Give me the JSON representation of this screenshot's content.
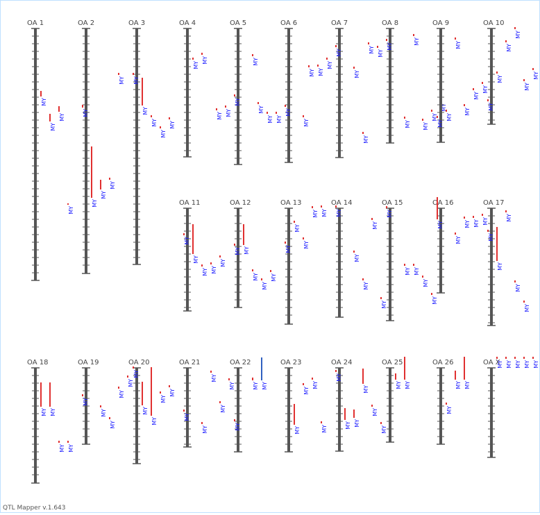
{
  "app": {
    "footer": "QTL Mapper v.1.643"
  },
  "colors": {
    "axis": "#555555",
    "qtl": "#e03030",
    "qtl_alt": "#3060c0",
    "label": "#1a1aff",
    "title": "#444444"
  },
  "trait_label": "MY",
  "chromosomes": [
    {
      "name": "OA 1",
      "qtls": [
        {
          "lane": 0,
          "top": 130,
          "bottom": 138
        },
        {
          "lane": 1,
          "top": 163,
          "bottom": 174
        },
        {
          "lane": 2,
          "top": 152,
          "bottom": 160
        },
        {
          "lane": 3,
          "top": 292,
          "bottom": 294
        }
      ]
    },
    {
      "name": "OA 2",
      "qtls": [
        {
          "lane": -1,
          "top": 150,
          "bottom": 154
        },
        {
          "lane": 0,
          "top": 210,
          "bottom": 284
        },
        {
          "lane": 1,
          "top": 258,
          "bottom": 272
        },
        {
          "lane": 2,
          "top": 255,
          "bottom": 258
        },
        {
          "lane": 3,
          "top": 104,
          "bottom": 107
        }
      ]
    },
    {
      "name": "OA 3",
      "qtls": [
        {
          "lane": -1,
          "top": 104,
          "bottom": 107
        },
        {
          "lane": 0,
          "top": 111,
          "bottom": 151
        },
        {
          "lane": 1,
          "top": 165,
          "bottom": 168
        },
        {
          "lane": 2,
          "top": 181,
          "bottom": 184
        },
        {
          "lane": 3,
          "top": 168,
          "bottom": 171
        }
      ]
    },
    {
      "name": "OA 4",
      "qtls": [
        {
          "lane": 0,
          "top": 82,
          "bottom": 85
        },
        {
          "lane": 1,
          "top": 75,
          "bottom": 78
        }
      ]
    },
    {
      "name": "OA 5",
      "qtls": [
        {
          "lane": -3,
          "top": 155,
          "bottom": 158
        },
        {
          "lane": -2,
          "top": 151,
          "bottom": 154
        },
        {
          "lane": -1,
          "top": 135,
          "bottom": 138
        },
        {
          "lane": 1,
          "top": 77,
          "bottom": 80
        }
      ]
    },
    {
      "name": "OA 6",
      "qtls": [
        {
          "lane": -4,
          "top": 146,
          "bottom": 149
        },
        {
          "lane": -3,
          "top": 160,
          "bottom": 163
        },
        {
          "lane": -2,
          "top": 160,
          "bottom": 163
        },
        {
          "lane": -1,
          "top": 150,
          "bottom": 153
        },
        {
          "lane": 1,
          "top": 165,
          "bottom": 168
        }
      ]
    },
    {
      "name": "OA 7",
      "qtls": [
        {
          "lane": -4,
          "top": 93,
          "bottom": 96
        },
        {
          "lane": -3,
          "top": 92,
          "bottom": 95
        },
        {
          "lane": -2,
          "top": 82,
          "bottom": 85
        },
        {
          "lane": -1,
          "top": 64,
          "bottom": 67
        },
        {
          "lane": 1,
          "top": 95,
          "bottom": 98
        },
        {
          "lane": 2,
          "top": 189,
          "bottom": 192
        }
      ]
    },
    {
      "name": "OA 8",
      "qtls": [
        {
          "lane": -3,
          "top": 60,
          "bottom": 63
        },
        {
          "lane": -2,
          "top": 65,
          "bottom": 68
        },
        {
          "lane": -1,
          "top": 55,
          "bottom": 58
        },
        {
          "lane": 1,
          "top": 167,
          "bottom": 170
        },
        {
          "lane": 2,
          "top": 48,
          "bottom": 51
        },
        {
          "lane": 3,
          "top": 170,
          "bottom": 173
        },
        {
          "lane": 4,
          "top": 157,
          "bottom": 160
        },
        {
          "lane": 5,
          "top": 143,
          "bottom": 146
        }
      ]
    },
    {
      "name": "OA 9",
      "qtls": [
        {
          "lane": -1,
          "top": 166,
          "bottom": 169
        },
        {
          "lane": 0,
          "top": 157,
          "bottom": 160
        },
        {
          "lane": 1,
          "top": 53,
          "bottom": 56
        },
        {
          "lane": 2,
          "top": 149,
          "bottom": 152
        },
        {
          "lane": 3,
          "top": 126,
          "bottom": 129
        },
        {
          "lane": 4,
          "top": 117,
          "bottom": 120
        }
      ]
    },
    {
      "name": "OA 10",
      "qtls": [
        {
          "lane": -1,
          "top": 142,
          "bottom": 145
        },
        {
          "lane": 0,
          "top": 102,
          "bottom": 105
        },
        {
          "lane": 1,
          "top": 57,
          "bottom": 60
        },
        {
          "lane": 2,
          "top": 38,
          "bottom": 41
        },
        {
          "lane": 3,
          "top": 113,
          "bottom": 116
        },
        {
          "lane": 4,
          "top": 97,
          "bottom": 100
        }
      ]
    },
    {
      "name": "OA 11",
      "qtls": [
        {
          "lane": -1,
          "top": 335,
          "bottom": 338
        },
        {
          "lane": 0,
          "top": 322,
          "bottom": 365
        },
        {
          "lane": 1,
          "top": 380,
          "bottom": 383
        },
        {
          "lane": 2,
          "top": 377,
          "bottom": 380
        },
        {
          "lane": 3,
          "top": 367,
          "bottom": 370
        }
      ]
    },
    {
      "name": "OA 12",
      "qtls": [
        {
          "lane": -1,
          "top": 350,
          "bottom": 353
        },
        {
          "lane": 0,
          "top": 322,
          "bottom": 352
        },
        {
          "lane": 1,
          "top": 387,
          "bottom": 390
        },
        {
          "lane": 2,
          "top": 400,
          "bottom": 403
        },
        {
          "lane": 3,
          "top": 388,
          "bottom": 391
        }
      ]
    },
    {
      "name": "OA 13",
      "qtls": [
        {
          "lane": -1,
          "top": 347,
          "bottom": 350
        },
        {
          "lane": 0,
          "top": 317,
          "bottom": 320
        },
        {
          "lane": 1,
          "top": 341,
          "bottom": 344
        },
        {
          "lane": 2,
          "top": 296,
          "bottom": 299
        },
        {
          "lane": 3,
          "top": 295,
          "bottom": 298
        }
      ]
    },
    {
      "name": "OA 14",
      "qtls": [
        {
          "lane": -1,
          "top": 295,
          "bottom": 298
        },
        {
          "lane": 1,
          "top": 360,
          "bottom": 363
        },
        {
          "lane": 2,
          "top": 400,
          "bottom": 403
        },
        {
          "lane": 3,
          "top": 313,
          "bottom": 316
        },
        {
          "lane": 4,
          "top": 427,
          "bottom": 430
        }
      ]
    },
    {
      "name": "OA 15",
      "qtls": [
        {
          "lane": -1,
          "top": 296,
          "bottom": 299
        },
        {
          "lane": 1,
          "top": 379,
          "bottom": 382
        },
        {
          "lane": 2,
          "top": 379,
          "bottom": 382
        },
        {
          "lane": 3,
          "top": 396,
          "bottom": 399
        },
        {
          "lane": 4,
          "top": 421,
          "bottom": 424
        }
      ]
    },
    {
      "name": "OA 16",
      "qtls": [
        {
          "lane": -1,
          "top": 283,
          "bottom": 315
        },
        {
          "lane": 1,
          "top": 334,
          "bottom": 337
        },
        {
          "lane": 2,
          "top": 311,
          "bottom": 314
        },
        {
          "lane": 3,
          "top": 310,
          "bottom": 313
        },
        {
          "lane": 4,
          "top": 307,
          "bottom": 310
        }
      ]
    },
    {
      "name": "OA 17",
      "qtls": [
        {
          "lane": -1,
          "top": 330,
          "bottom": 333
        },
        {
          "lane": 0,
          "top": 326,
          "bottom": 375
        },
        {
          "lane": 1,
          "top": 302,
          "bottom": 305
        },
        {
          "lane": 2,
          "top": 403,
          "bottom": 406
        },
        {
          "lane": 3,
          "top": 432,
          "bottom": 435
        }
      ]
    },
    {
      "name": "OA 18",
      "qtls": [
        {
          "lane": 0,
          "top": 550,
          "bottom": 585
        },
        {
          "lane": 1,
          "top": 550,
          "bottom": 585
        },
        {
          "lane": 2,
          "top": 634,
          "bottom": 637
        },
        {
          "lane": 3,
          "top": 634,
          "bottom": 637
        }
      ]
    },
    {
      "name": "OA 19",
      "qtls": [
        {
          "lane": -1,
          "top": 567,
          "bottom": 570
        },
        {
          "lane": 1,
          "top": 583,
          "bottom": 586
        },
        {
          "lane": 2,
          "top": 600,
          "bottom": 603
        },
        {
          "lane": 3,
          "top": 556,
          "bottom": 559
        },
        {
          "lane": 4,
          "top": 540,
          "bottom": 543
        }
      ]
    },
    {
      "name": "OA 20",
      "qtls": [
        {
          "lane": -1,
          "top": 527,
          "bottom": 530
        },
        {
          "lane": 0,
          "top": 549,
          "bottom": 583
        },
        {
          "lane": 1,
          "top": 528,
          "bottom": 598
        },
        {
          "lane": 2,
          "top": 563,
          "bottom": 566
        },
        {
          "lane": 3,
          "top": 554,
          "bottom": 557
        }
      ]
    },
    {
      "name": "OA 21",
      "qtls": [
        {
          "lane": -1,
          "top": 589,
          "bottom": 592
        },
        {
          "lane": 1,
          "top": 607,
          "bottom": 610
        },
        {
          "lane": 2,
          "top": 533,
          "bottom": 536
        },
        {
          "lane": 3,
          "top": 577,
          "bottom": 580
        },
        {
          "lane": 4,
          "top": 544,
          "bottom": 547
        }
      ]
    },
    {
      "name": "OA 22",
      "qtls": [
        {
          "lane": -1,
          "top": 603,
          "bottom": 606
        },
        {
          "lane": 1,
          "top": 543,
          "bottom": 547
        },
        {
          "lane": 2,
          "top": 514,
          "bottom": 547,
          "alt": true
        }
      ]
    },
    {
      "name": "OA 23",
      "qtls": [
        {
          "lane": 0,
          "top": 581,
          "bottom": 611
        },
        {
          "lane": 1,
          "top": 551,
          "bottom": 554
        },
        {
          "lane": 2,
          "top": 543,
          "bottom": 546
        },
        {
          "lane": 3,
          "top": 606,
          "bottom": 609
        }
      ]
    },
    {
      "name": "OA 24",
      "qtls": [
        {
          "lane": -1,
          "top": 532,
          "bottom": 535
        },
        {
          "lane": 0,
          "top": 587,
          "bottom": 604
        },
        {
          "lane": 1,
          "top": 589,
          "bottom": 601
        },
        {
          "lane": 2,
          "top": 530,
          "bottom": 552
        },
        {
          "lane": 3,
          "top": 582,
          "bottom": 585
        },
        {
          "lane": 4,
          "top": 607,
          "bottom": 610
        }
      ]
    },
    {
      "name": "OA 25",
      "qtls": [
        {
          "lane": 0,
          "top": 537,
          "bottom": 546
        },
        {
          "lane": 1,
          "top": 513,
          "bottom": 546
        }
      ]
    },
    {
      "name": "OA 26",
      "qtls": [
        {
          "lane": 0,
          "top": 579,
          "bottom": 582
        },
        {
          "lane": 1,
          "top": 533,
          "bottom": 546
        },
        {
          "lane": 2,
          "top": 513,
          "bottom": 546
        }
      ]
    },
    {
      "name": "OA X",
      "qtls": [
        {
          "lane": 0,
          "top": 513,
          "bottom": 516
        },
        {
          "lane": 1,
          "top": 513,
          "bottom": 516
        },
        {
          "lane": 2,
          "top": 513,
          "bottom": 516
        },
        {
          "lane": 3,
          "top": 513,
          "bottom": 516
        },
        {
          "lane": 4,
          "top": 513,
          "bottom": 516
        }
      ]
    }
  ]
}
